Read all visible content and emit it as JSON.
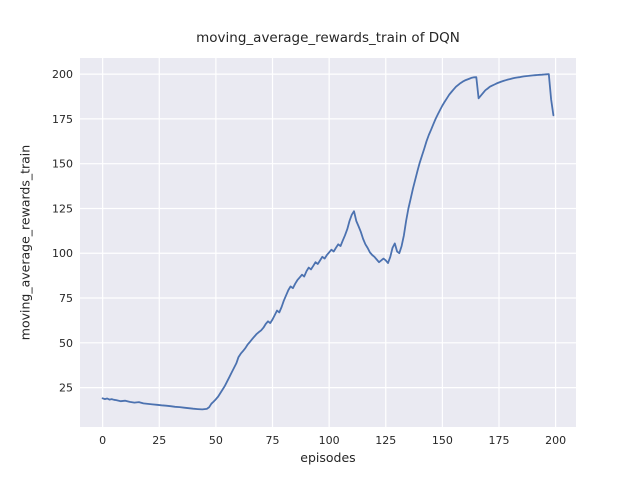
{
  "figure": {
    "background": "#ffffff",
    "axes_background": "#eaeaf2",
    "grid_color": "#ffffff",
    "text_color": "#262626"
  },
  "chart_data": {
    "type": "line",
    "title": "moving_average_rewards_train of DQN",
    "xlabel": "episodes",
    "ylabel": "moving_average_rewards_train",
    "xlim": [
      -10,
      209
    ],
    "ylim": [
      3,
      209
    ],
    "xticks": [
      0,
      25,
      50,
      75,
      100,
      125,
      150,
      175,
      200
    ],
    "yticks": [
      25,
      50,
      75,
      100,
      125,
      150,
      175,
      200
    ],
    "grid": true,
    "legend_position": "none",
    "series": [
      {
        "name": "moving_average_rewards_train",
        "color": "#4c72b0",
        "points": [
          [
            0,
            19
          ],
          [
            1,
            18.6
          ],
          [
            2,
            18.9
          ],
          [
            3,
            18.3
          ],
          [
            4,
            18.6
          ],
          [
            5,
            18.2
          ],
          [
            6,
            18.0
          ],
          [
            8,
            17.4
          ],
          [
            10,
            17.7
          ],
          [
            12,
            17.0
          ],
          [
            14,
            16.6
          ],
          [
            16,
            16.9
          ],
          [
            18,
            16.2
          ],
          [
            20,
            15.9
          ],
          [
            22,
            15.6
          ],
          [
            24,
            15.4
          ],
          [
            26,
            15.1
          ],
          [
            28,
            14.9
          ],
          [
            30,
            14.6
          ],
          [
            32,
            14.3
          ],
          [
            34,
            14.1
          ],
          [
            36,
            13.8
          ],
          [
            38,
            13.5
          ],
          [
            40,
            13.2
          ],
          [
            42,
            13.0
          ],
          [
            44,
            12.8
          ],
          [
            46,
            13.1
          ],
          [
            47,
            14.0
          ],
          [
            48,
            16.0
          ],
          [
            49,
            17.2
          ],
          [
            50,
            18.5
          ],
          [
            51,
            20.0
          ],
          [
            52,
            22.0
          ],
          [
            53,
            24.0
          ],
          [
            54,
            26.0
          ],
          [
            55,
            28.5
          ],
          [
            56,
            31.0
          ],
          [
            57,
            33.5
          ],
          [
            58,
            36.0
          ],
          [
            59,
            38.5
          ],
          [
            60,
            42.0
          ],
          [
            61,
            44.0
          ],
          [
            62,
            45.5
          ],
          [
            63,
            47.0
          ],
          [
            64,
            49.0
          ],
          [
            65,
            50.5
          ],
          [
            66,
            52.0
          ],
          [
            67,
            53.5
          ],
          [
            68,
            55.0
          ],
          [
            69,
            56.0
          ],
          [
            70,
            57.0
          ],
          [
            71,
            58.5
          ],
          [
            72,
            60.5
          ],
          [
            73,
            62.0
          ],
          [
            74,
            61.0
          ],
          [
            75,
            63.0
          ],
          [
            76,
            65.5
          ],
          [
            77,
            68.0
          ],
          [
            78,
            67.0
          ],
          [
            79,
            70.0
          ],
          [
            80,
            73.5
          ],
          [
            81,
            76.5
          ],
          [
            82,
            79.5
          ],
          [
            83,
            81.5
          ],
          [
            84,
            80.5
          ],
          [
            85,
            83.0
          ],
          [
            86,
            85.0
          ],
          [
            87,
            86.5
          ],
          [
            88,
            88.0
          ],
          [
            89,
            87.0
          ],
          [
            90,
            90.0
          ],
          [
            91,
            92.0
          ],
          [
            92,
            91.0
          ],
          [
            93,
            93.0
          ],
          [
            94,
            95.0
          ],
          [
            95,
            94.0
          ],
          [
            96,
            96.0
          ],
          [
            97,
            98.0
          ],
          [
            98,
            97.0
          ],
          [
            99,
            99.0
          ],
          [
            100,
            100.5
          ],
          [
            101,
            102.0
          ],
          [
            102,
            101.0
          ],
          [
            103,
            103.0
          ],
          [
            104,
            105.0
          ],
          [
            105,
            104.0
          ],
          [
            106,
            107.0
          ],
          [
            107,
            110.0
          ],
          [
            108,
            113.5
          ],
          [
            109,
            118.0
          ],
          [
            110,
            121.5
          ],
          [
            111,
            123.5
          ],
          [
            112,
            118.0
          ],
          [
            113,
            115.0
          ],
          [
            114,
            112.0
          ],
          [
            115,
            108.0
          ],
          [
            116,
            105.0
          ],
          [
            117,
            103.0
          ],
          [
            118,
            100.5
          ],
          [
            119,
            99.0
          ],
          [
            120,
            98.0
          ],
          [
            121,
            96.5
          ],
          [
            122,
            95.0
          ],
          [
            123,
            96.0
          ],
          [
            124,
            97.0
          ],
          [
            125,
            96.0
          ],
          [
            126,
            94.5
          ],
          [
            127,
            98.0
          ],
          [
            128,
            103.0
          ],
          [
            129,
            105.5
          ],
          [
            130,
            101.0
          ],
          [
            131,
            100.0
          ],
          [
            132,
            104.0
          ],
          [
            133,
            110.0
          ],
          [
            134,
            118.0
          ],
          [
            135,
            125.0
          ],
          [
            136,
            130.5
          ],
          [
            137,
            136.0
          ],
          [
            138,
            141.0
          ],
          [
            139,
            146.0
          ],
          [
            140,
            150.5
          ],
          [
            141,
            154.5
          ],
          [
            142,
            158.5
          ],
          [
            143,
            162.5
          ],
          [
            144,
            166.0
          ],
          [
            145,
            169.0
          ],
          [
            146,
            172.0
          ],
          [
            147,
            175.0
          ],
          [
            148,
            177.5
          ],
          [
            149,
            180.0
          ],
          [
            150,
            182.5
          ],
          [
            151,
            184.5
          ],
          [
            152,
            186.5
          ],
          [
            153,
            188.5
          ],
          [
            154,
            190.0
          ],
          [
            155,
            191.5
          ],
          [
            156,
            193.0
          ],
          [
            157,
            194.0
          ],
          [
            158,
            195.0
          ],
          [
            159,
            195.8
          ],
          [
            160,
            196.5
          ],
          [
            161,
            197.0
          ],
          [
            162,
            197.5
          ],
          [
            163,
            198.0
          ],
          [
            164,
            198.2
          ],
          [
            165,
            198.3
          ],
          [
            166,
            186.5
          ],
          [
            167,
            188.0
          ],
          [
            168,
            189.5
          ],
          [
            169,
            191.0
          ],
          [
            170,
            192.0
          ],
          [
            171,
            193.0
          ],
          [
            172,
            193.6
          ],
          [
            173,
            194.2
          ],
          [
            174,
            194.8
          ],
          [
            175,
            195.3
          ],
          [
            176,
            195.8
          ],
          [
            177,
            196.2
          ],
          [
            178,
            196.6
          ],
          [
            179,
            197.0
          ],
          [
            180,
            197.3
          ],
          [
            181,
            197.6
          ],
          [
            182,
            197.9
          ],
          [
            183,
            198.1
          ],
          [
            184,
            198.3
          ],
          [
            185,
            198.5
          ],
          [
            186,
            198.7
          ],
          [
            187,
            198.9
          ],
          [
            188,
            199.0
          ],
          [
            189,
            199.2
          ],
          [
            190,
            199.3
          ],
          [
            191,
            199.4
          ],
          [
            192,
            199.5
          ],
          [
            193,
            199.6
          ],
          [
            194,
            199.7
          ],
          [
            195,
            199.8
          ],
          [
            196,
            199.9
          ],
          [
            197,
            200.0
          ],
          [
            198,
            186.0
          ],
          [
            199,
            177.0
          ]
        ]
      }
    ]
  }
}
